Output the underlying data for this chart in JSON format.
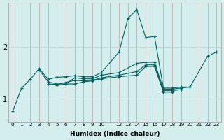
{
  "bg_color": "#d4eeee",
  "line_color": "#006060",
  "grid_color_x": "#c8a0a0",
  "grid_color_y": "#b8d8d8",
  "xlabel": "Humidex (Indice chaleur)",
  "yticks": [
    1,
    2
  ],
  "xlim": [
    -0.5,
    23.5
  ],
  "ylim": [
    0.55,
    2.85
  ],
  "figsize": [
    3.2,
    2.0
  ],
  "dpi": 100,
  "xtick_labels": [
    "0",
    "1",
    "2",
    "3",
    "4",
    "5",
    "6",
    "7",
    "8",
    "9",
    "10",
    "",
    "12",
    "13",
    "14",
    "15",
    "16",
    "17",
    "18",
    "19",
    "20",
    "21",
    "22",
    "23"
  ],
  "xtick_positions": [
    0,
    1,
    2,
    3,
    4,
    5,
    6,
    7,
    8,
    9,
    10,
    11,
    12,
    13,
    14,
    15,
    16,
    17,
    18,
    19,
    20,
    21,
    22,
    23
  ],
  "series": [
    {
      "x": [
        0,
        1,
        2,
        3,
        4,
        5,
        6,
        7,
        8,
        9,
        10,
        12,
        13,
        14,
        15,
        16,
        17,
        18,
        19,
        20,
        22,
        23
      ],
      "y": [
        0.75,
        1.2,
        1.37,
        1.58,
        1.37,
        1.41,
        1.42,
        1.44,
        1.42,
        1.42,
        1.5,
        1.9,
        2.55,
        2.72,
        2.18,
        2.2,
        1.2,
        1.2,
        1.22,
        1.22,
        1.82,
        1.9
      ]
    },
    {
      "x": [
        3,
        4,
        5,
        6,
        7,
        8,
        9,
        10,
        12,
        14,
        15,
        16,
        17,
        18,
        19,
        20
      ],
      "y": [
        1.55,
        1.32,
        1.28,
        1.28,
        1.4,
        1.38,
        1.38,
        1.45,
        1.5,
        1.68,
        1.7,
        1.7,
        1.18,
        1.18,
        1.2,
        1.22
      ]
    },
    {
      "x": [
        4,
        5,
        6,
        7,
        8,
        9,
        10,
        12,
        14,
        15,
        16,
        17,
        18,
        19
      ],
      "y": [
        1.28,
        1.27,
        1.31,
        1.35,
        1.34,
        1.35,
        1.4,
        1.45,
        1.52,
        1.65,
        1.65,
        1.15,
        1.15,
        1.17
      ]
    },
    {
      "x": [
        5,
        6,
        7,
        8,
        9,
        10,
        12,
        14,
        15,
        16,
        17,
        18
      ],
      "y": [
        1.25,
        1.28,
        1.28,
        1.32,
        1.34,
        1.38,
        1.42,
        1.45,
        1.62,
        1.62,
        1.12,
        1.12
      ]
    }
  ]
}
